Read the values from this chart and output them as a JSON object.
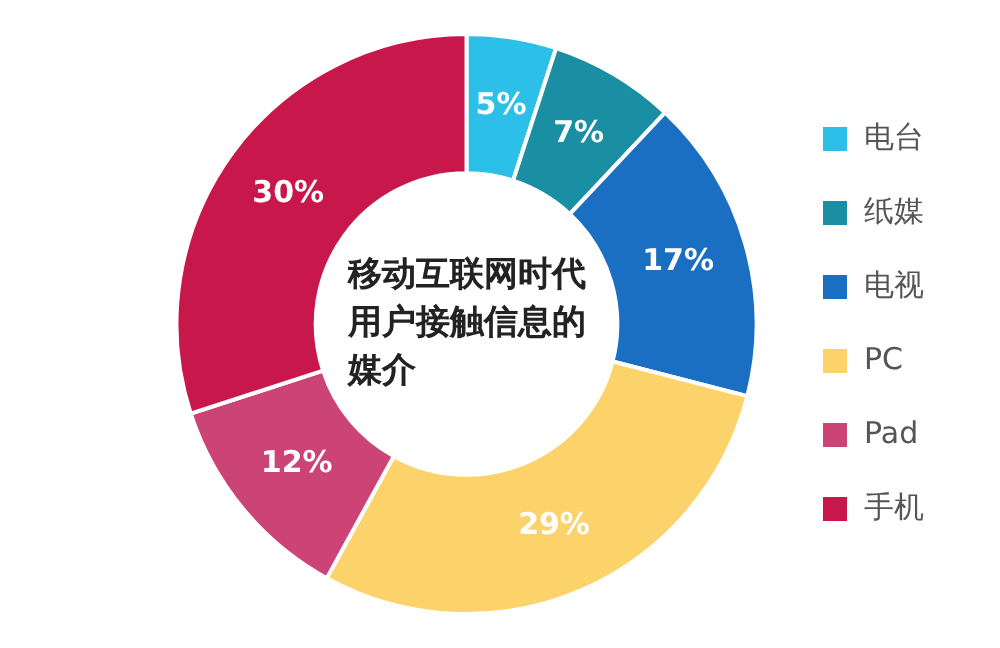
{
  "chart_data": {
    "type": "donut",
    "title": "移动互联网时代用户接触信息的媒介",
    "categories": [
      "电台",
      "纸媒",
      "电视",
      "PC",
      "Pad",
      "手机"
    ],
    "values": [
      5,
      7,
      17,
      29,
      12,
      30
    ],
    "value_labels": [
      "5%",
      "7%",
      "17%",
      "29%",
      "12%",
      "30%"
    ],
    "colors": [
      "#2cc0e8",
      "#1a8fa3",
      "#1a6fc2",
      "#fcd36b",
      "#cc4475",
      "#c8174b"
    ],
    "legend": "right"
  }
}
